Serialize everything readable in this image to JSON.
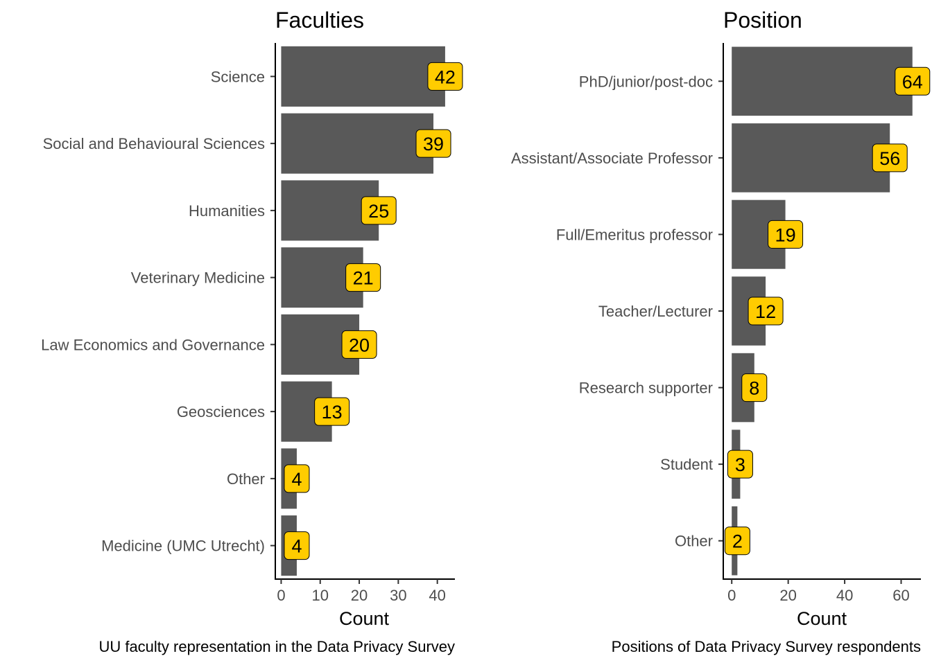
{
  "chart_data": [
    {
      "type": "bar",
      "orientation": "horizontal",
      "title": "Faculties",
      "xlabel": "Count",
      "caption": "UU faculty representation in the Data Privacy Survey",
      "categories": [
        "Science",
        "Social and Behavioural Sciences",
        "Humanities",
        "Veterinary Medicine",
        "Law Economics and Governance",
        "Geosciences",
        "Other",
        "Medicine (UMC Utrecht)"
      ],
      "values": [
        42,
        39,
        25,
        21,
        20,
        13,
        4,
        4
      ],
      "xlim": [
        -1.5,
        44.5
      ],
      "xticks": [
        0,
        10,
        20,
        30,
        40
      ],
      "bar_color": "#595959",
      "label_fill": "#ffcc00",
      "grid": false
    },
    {
      "type": "bar",
      "orientation": "horizontal",
      "title": "Position",
      "xlabel": "Count",
      "caption": "Positions of Data Privacy Survey respondents",
      "categories": [
        "PhD/junior/post-doc",
        "Assistant/Associate Professor",
        "Full/Emeritus professor",
        "Teacher/Lecturer",
        "Research supporter",
        "Student",
        "Other"
      ],
      "values": [
        64,
        56,
        19,
        12,
        8,
        3,
        2
      ],
      "xlim": [
        -3,
        67
      ],
      "xticks": [
        0,
        20,
        40,
        60
      ],
      "bar_color": "#595959",
      "label_fill": "#ffcc00",
      "grid": false
    }
  ]
}
